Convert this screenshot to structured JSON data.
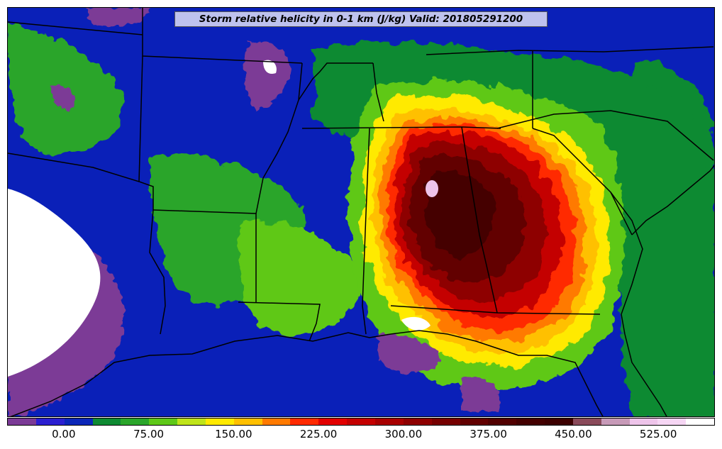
{
  "title": "Storm relative helicity in 0-1 km (J/kg) Valid: 201805291200",
  "colorbar": {
    "colors": [
      "#7b3a96",
      "#2b1fd0",
      "#0b26b8",
      "#0e8a32",
      "#2aa52a",
      "#5ec818",
      "#bfe41a",
      "#ffea00",
      "#ffc000",
      "#ff7a00",
      "#ff2a00",
      "#e20000",
      "#c40000",
      "#a80000",
      "#8e0000",
      "#760000",
      "#620000",
      "#520000",
      "#440000",
      "#3c0000",
      "#8a4a5a",
      "#c79ab8",
      "#eec4ea",
      "#f6d6f4",
      "#ffffff"
    ],
    "tick_labels": [
      "0.00",
      "75.00",
      "150.00",
      "225.00",
      "300.00",
      "375.00",
      "450.00",
      "525.00"
    ],
    "tick_values": [
      0,
      75,
      150,
      225,
      300,
      375,
      450,
      525
    ],
    "min": -50,
    "max": 575
  },
  "map": {
    "field": "Storm relative helicity 0-1 km",
    "units": "J/kg",
    "valid": "201805291200"
  }
}
